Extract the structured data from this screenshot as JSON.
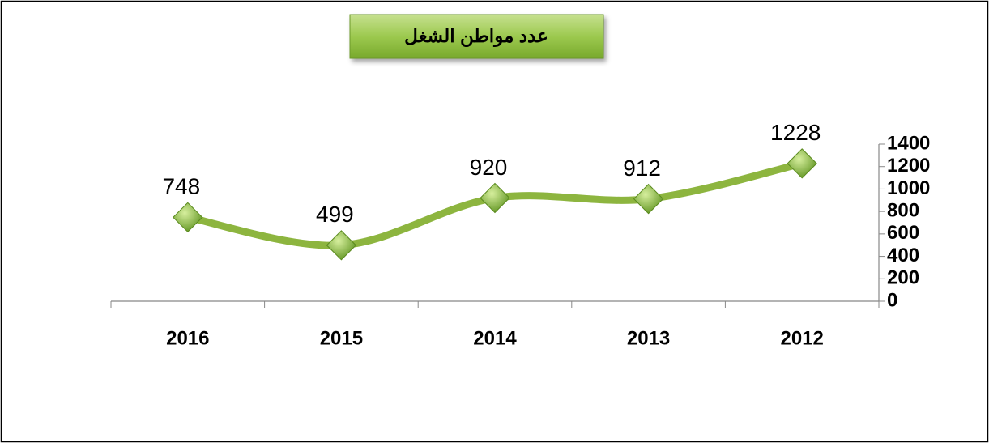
{
  "chart_data": {
    "type": "line",
    "title": "عدد  مواطن الشغل",
    "categories": [
      "2016",
      "2015",
      "2014",
      "2013",
      "2012"
    ],
    "values": [
      748,
      499,
      920,
      912,
      1228
    ],
    "color": "#8db53f",
    "marker_color": "#7fae2e",
    "ylim": [
      0,
      1400
    ],
    "yticks": [
      0,
      200,
      400,
      600,
      800,
      1000,
      1200,
      1400
    ],
    "y_axis_side": "right",
    "grid": false
  }
}
